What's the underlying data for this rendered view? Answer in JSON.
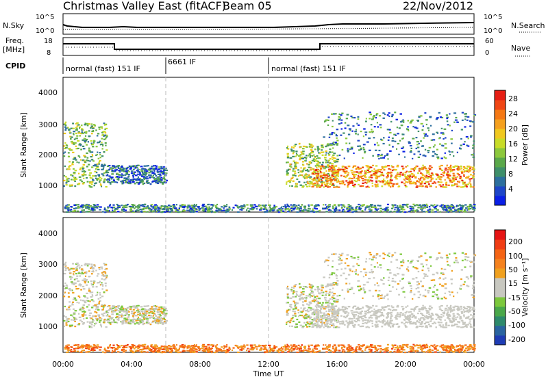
{
  "header": {
    "title": "Christmas Valley East (fitACF)",
    "beam": "Beam 05",
    "date": "22/Nov/2012"
  },
  "params": {
    "nsky_label": "N.Sky",
    "nsearch_label": "N.Search",
    "freq_label_top": "Freq.",
    "freq_label_bottom": "[MHz]",
    "nave_label": "Nave",
    "cpid_label": "CPID",
    "nsky_ticks": [
      "10^5",
      "10^0"
    ],
    "nsearch_ticks": [
      "10^5",
      "10^0"
    ],
    "freq_ticks": [
      "18",
      "8"
    ],
    "nave_ticks": [
      "60",
      "0"
    ],
    "cpid_segments": [
      {
        "label": "normal (fast) 151 IF",
        "start_hour": 0,
        "end_hour": 6
      },
      {
        "label": "6661 IF",
        "start_hour": 6,
        "end_hour": 12
      },
      {
        "label": "normal (fast) 151 IF",
        "start_hour": 12,
        "end_hour": 24
      }
    ]
  },
  "power_panel": {
    "ylabel": "Slant Range [km]",
    "yticks": [
      "4000",
      "3000",
      "2000",
      "1000"
    ],
    "colorbar_label": "Power [dB]",
    "colorbar_ticks": [
      "28",
      "24",
      "20",
      "16",
      "12",
      "8",
      "4"
    ],
    "colors": [
      "#0a1fe6",
      "#1e46c8",
      "#2d6f9e",
      "#3f8f6a",
      "#5aa84a",
      "#8cc83c",
      "#c8dc28",
      "#f0c81e",
      "#f5a01e",
      "#f57814",
      "#f04614",
      "#e61e14"
    ]
  },
  "velocity_panel": {
    "ylabel": "Slant Range [km]",
    "yticks": [
      "4000",
      "3000",
      "2000",
      "1000"
    ],
    "colorbar_label": "Velocity [m s⁻¹]",
    "colorbar_ticks": [
      "200",
      "100",
      "50",
      "15",
      "-15",
      "-50",
      "-100",
      "-200"
    ],
    "colors": [
      "#1e3cb4",
      "#2a64a0",
      "#2e8a6c",
      "#4aa84a",
      "#7cc83c",
      "#c8c8c0",
      "#c8c8c0",
      "#f0a01e",
      "#f5821e",
      "#f56414",
      "#f03c14",
      "#e61414"
    ]
  },
  "xaxis": {
    "xlabel": "Time UT",
    "ticks": [
      "00:00",
      "04:00",
      "08:00",
      "12:00",
      "16:00",
      "20:00",
      "00:00"
    ]
  },
  "chart_data": {
    "type": "heatmap",
    "title": "Christmas Valley East (fitACF)",
    "subtitle": "Beam 05",
    "xlabel": "Time UT",
    "ylabel": "Slant Range [km]",
    "xlim": [
      0,
      24
    ],
    "ylim": [
      180,
      4500
    ],
    "panels": [
      {
        "name": "Power",
        "unit": "dB",
        "colorbar_range": [
          0,
          30
        ]
      },
      {
        "name": "Velocity",
        "unit": "m s⁻¹",
        "colorbar_range": [
          -200,
          200
        ]
      }
    ],
    "regions": [
      {
        "hours": [
          0,
          2.5
        ],
        "range_km": [
          1000,
          3100
        ],
        "power_db": 12
      },
      {
        "hours": [
          2.5,
          6
        ],
        "range_km": [
          1100,
          1700
        ],
        "power_db": 6
      },
      {
        "hours": [
          0,
          24
        ],
        "range_km": [
          200,
          450
        ],
        "power_db": 8
      },
      {
        "hours": [
          13,
          16
        ],
        "range_km": [
          1000,
          2400
        ],
        "power_db": 14
      },
      {
        "hours": [
          14.5,
          24
        ],
        "range_km": [
          1000,
          1700
        ],
        "power_db": 22
      },
      {
        "hours": [
          15,
          24
        ],
        "range_km": [
          1900,
          3400
        ],
        "power_db": 8
      }
    ]
  }
}
